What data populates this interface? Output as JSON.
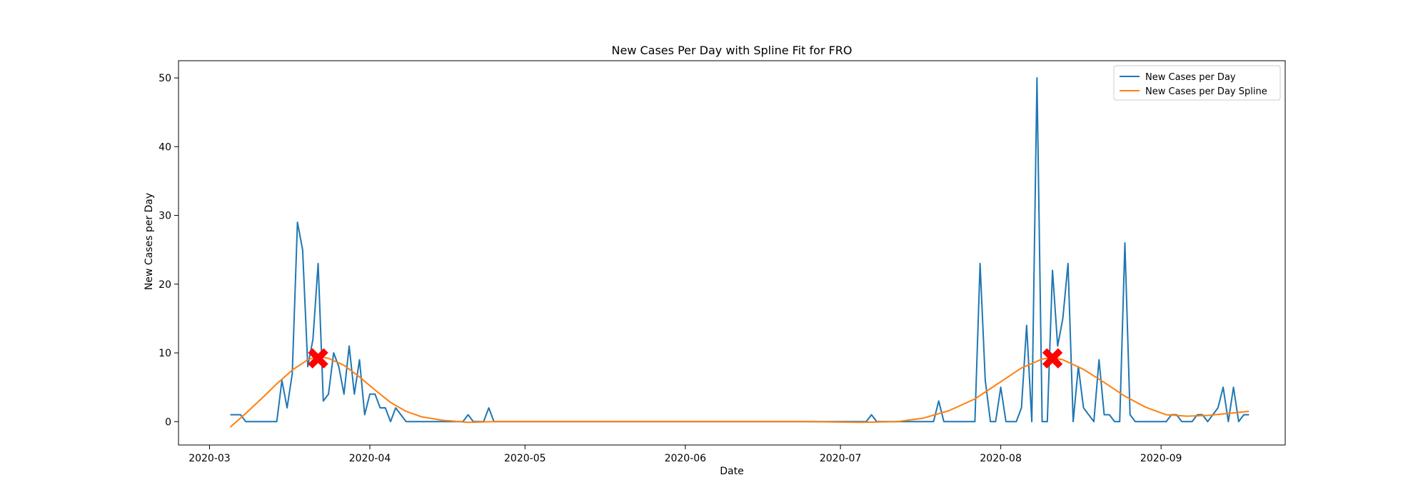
{
  "chart_data": {
    "type": "line",
    "title": "New Cases Per Day with Spline Fit for FRO",
    "xlabel": "Date",
    "ylabel": "New Cases per Day",
    "xlim": [
      "2020-02-24",
      "2020-09-25"
    ],
    "ylim": [
      -3.4,
      52.5
    ],
    "x_ticks": [
      "2020-03-01",
      "2020-04-01",
      "2020-05-01",
      "2020-06-01",
      "2020-07-01",
      "2020-08-01",
      "2020-09-01"
    ],
    "x_tick_labels": [
      "2020-03",
      "2020-04",
      "2020-05",
      "2020-06",
      "2020-07",
      "2020-08",
      "2020-09"
    ],
    "y_ticks": [
      0,
      10,
      20,
      30,
      40,
      50
    ],
    "y_tick_labels": [
      "0",
      "10",
      "20",
      "30",
      "40",
      "50"
    ],
    "grid": false,
    "legend_position": "top-right",
    "series": [
      {
        "name": "New Cases per Day",
        "color": "#1f77b4",
        "points": [
          [
            "2020-03-05",
            1
          ],
          [
            "2020-03-07",
            1
          ],
          [
            "2020-03-08",
            0
          ],
          [
            "2020-03-14",
            0
          ],
          [
            "2020-03-15",
            6
          ],
          [
            "2020-03-16",
            2
          ],
          [
            "2020-03-17",
            7
          ],
          [
            "2020-03-18",
            29
          ],
          [
            "2020-03-19",
            25
          ],
          [
            "2020-03-20",
            8
          ],
          [
            "2020-03-21",
            12
          ],
          [
            "2020-03-22",
            23
          ],
          [
            "2020-03-23",
            3
          ],
          [
            "2020-03-24",
            4
          ],
          [
            "2020-03-25",
            10
          ],
          [
            "2020-03-26",
            8
          ],
          [
            "2020-03-27",
            4
          ],
          [
            "2020-03-28",
            11
          ],
          [
            "2020-03-29",
            4
          ],
          [
            "2020-03-30",
            9
          ],
          [
            "2020-03-31",
            1
          ],
          [
            "2020-04-01",
            4
          ],
          [
            "2020-04-02",
            4
          ],
          [
            "2020-04-03",
            2
          ],
          [
            "2020-04-04",
            2
          ],
          [
            "2020-04-05",
            0
          ],
          [
            "2020-04-06",
            2
          ],
          [
            "2020-04-07",
            1
          ],
          [
            "2020-04-08",
            0
          ],
          [
            "2020-04-19",
            0
          ],
          [
            "2020-04-20",
            1
          ],
          [
            "2020-04-21",
            0
          ],
          [
            "2020-04-23",
            0
          ],
          [
            "2020-04-24",
            2
          ],
          [
            "2020-04-25",
            0
          ],
          [
            "2020-07-06",
            0
          ],
          [
            "2020-07-07",
            1
          ],
          [
            "2020-07-08",
            0
          ],
          [
            "2020-07-19",
            0
          ],
          [
            "2020-07-20",
            3
          ],
          [
            "2020-07-21",
            0
          ],
          [
            "2020-07-27",
            0
          ],
          [
            "2020-07-28",
            23
          ],
          [
            "2020-07-29",
            6
          ],
          [
            "2020-07-30",
            0
          ],
          [
            "2020-07-31",
            0
          ],
          [
            "2020-08-01",
            5
          ],
          [
            "2020-08-02",
            0
          ],
          [
            "2020-08-04",
            0
          ],
          [
            "2020-08-05",
            2
          ],
          [
            "2020-08-06",
            14
          ],
          [
            "2020-08-07",
            0
          ],
          [
            "2020-08-08",
            50
          ],
          [
            "2020-08-09",
            0
          ],
          [
            "2020-08-10",
            0
          ],
          [
            "2020-08-11",
            22
          ],
          [
            "2020-08-12",
            11
          ],
          [
            "2020-08-13",
            15
          ],
          [
            "2020-08-14",
            23
          ],
          [
            "2020-08-15",
            0
          ],
          [
            "2020-08-16",
            8
          ],
          [
            "2020-08-17",
            2
          ],
          [
            "2020-08-18",
            1
          ],
          [
            "2020-08-19",
            0
          ],
          [
            "2020-08-20",
            9
          ],
          [
            "2020-08-21",
            1
          ],
          [
            "2020-08-22",
            1
          ],
          [
            "2020-08-23",
            0
          ],
          [
            "2020-08-24",
            0
          ],
          [
            "2020-08-25",
            26
          ],
          [
            "2020-08-26",
            1
          ],
          [
            "2020-08-27",
            0
          ],
          [
            "2020-09-02",
            0
          ],
          [
            "2020-09-03",
            1
          ],
          [
            "2020-09-04",
            1
          ],
          [
            "2020-09-05",
            0
          ],
          [
            "2020-09-07",
            0
          ],
          [
            "2020-09-08",
            1
          ],
          [
            "2020-09-09",
            1
          ],
          [
            "2020-09-10",
            0
          ],
          [
            "2020-09-12",
            2
          ],
          [
            "2020-09-13",
            5
          ],
          [
            "2020-09-14",
            0
          ],
          [
            "2020-09-15",
            5
          ],
          [
            "2020-09-16",
            0
          ],
          [
            "2020-09-17",
            1
          ],
          [
            "2020-09-18",
            1
          ]
        ]
      },
      {
        "name": "New Cases per Day Spline",
        "color": "#ff7f0e",
        "points": [
          [
            "2020-03-05",
            -0.8
          ],
          [
            "2020-03-08",
            1.2
          ],
          [
            "2020-03-11",
            3.3
          ],
          [
            "2020-03-14",
            5.5
          ],
          [
            "2020-03-17",
            7.5
          ],
          [
            "2020-03-20",
            9.0
          ],
          [
            "2020-03-22",
            9.5
          ],
          [
            "2020-03-24",
            9.2
          ],
          [
            "2020-03-27",
            8.2
          ],
          [
            "2020-03-30",
            6.5
          ],
          [
            "2020-04-02",
            4.6
          ],
          [
            "2020-04-05",
            2.8
          ],
          [
            "2020-04-08",
            1.5
          ],
          [
            "2020-04-11",
            0.7
          ],
          [
            "2020-04-15",
            0.2
          ],
          [
            "2020-04-20",
            -0.1
          ],
          [
            "2020-04-25",
            0.0
          ],
          [
            "2020-05-10",
            0.0
          ],
          [
            "2020-06-01",
            0.0
          ],
          [
            "2020-06-25",
            0.0
          ],
          [
            "2020-07-05",
            -0.1
          ],
          [
            "2020-07-12",
            0.0
          ],
          [
            "2020-07-17",
            0.5
          ],
          [
            "2020-07-22",
            1.6
          ],
          [
            "2020-07-27",
            3.3
          ],
          [
            "2020-08-01",
            5.8
          ],
          [
            "2020-08-05",
            7.8
          ],
          [
            "2020-08-09",
            9.1
          ],
          [
            "2020-08-11",
            9.3
          ],
          [
            "2020-08-13",
            9.0
          ],
          [
            "2020-08-17",
            7.6
          ],
          [
            "2020-08-21",
            5.7
          ],
          [
            "2020-08-25",
            3.7
          ],
          [
            "2020-08-29",
            2.1
          ],
          [
            "2020-09-02",
            1.0
          ],
          [
            "2020-09-06",
            0.8
          ],
          [
            "2020-09-10",
            0.9
          ],
          [
            "2020-09-14",
            1.2
          ],
          [
            "2020-09-18",
            1.5
          ]
        ]
      }
    ],
    "markers": [
      {
        "x": "2020-03-22",
        "y": 9.2,
        "symbol": "X",
        "color": "#ff0000"
      },
      {
        "x": "2020-08-11",
        "y": 9.2,
        "symbol": "X",
        "color": "#ff0000"
      }
    ]
  }
}
